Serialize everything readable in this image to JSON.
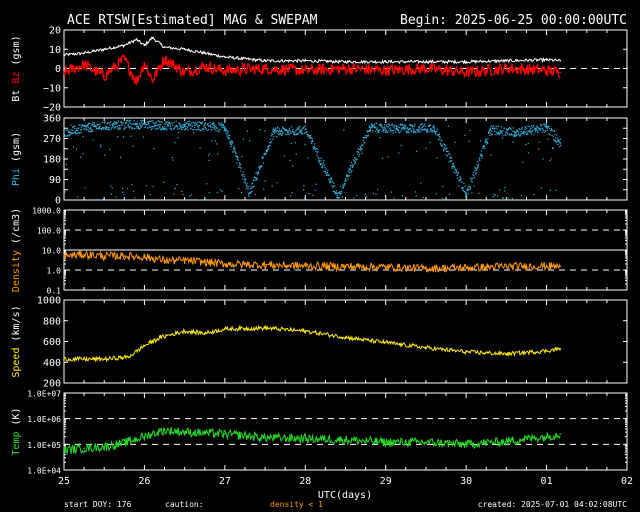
{
  "title": "ACE RTSW[Estimated] MAG & SWEPAM",
  "begin": "Begin: 2025-06-25 00:00:00UTC",
  "footer": {
    "start_doy": "start DOY: 176",
    "caution": "caution:",
    "density_note": "density < 1",
    "created": "created: 2025-07-01 04:02:08UTC"
  },
  "colors": {
    "bt": "#ffffff",
    "bz": "#ff0000",
    "phi": "#33b5e5",
    "density": "#ff9900",
    "speed": "#ffee00",
    "temp": "#22dd22",
    "axes": "#ffffff"
  },
  "xaxis": {
    "label": "UTC(days)",
    "range_days": [
      0,
      7
    ],
    "ticks": [
      "25",
      "26",
      "27",
      "28",
      "29",
      "30",
      "01",
      "02"
    ],
    "data_end_day": 6.17
  },
  "chart_data": [
    {
      "type": "line",
      "title": "",
      "ylabel_parts": [
        "Bt",
        "Bz",
        "(gsm)"
      ],
      "ylim": [
        -20,
        20
      ],
      "ytick_values": [
        -20,
        -10,
        0,
        10,
        20
      ],
      "ytick_labels": [
        "−20",
        "−10",
        "0",
        "10",
        "20"
      ],
      "dashed_lines": [
        0
      ],
      "grid": false,
      "series": [
        {
          "name": "Bt",
          "x": [
            0,
            0.25,
            0.5,
            0.75,
            0.9,
            1.0,
            1.1,
            1.25,
            1.5,
            1.75,
            2.0,
            2.5,
            3.0,
            3.5,
            4.0,
            4.5,
            5.0,
            5.5,
            6.0,
            6.17
          ],
          "values": [
            7,
            8,
            10,
            12,
            15,
            12,
            16,
            11,
            10,
            8,
            6,
            4,
            4,
            3.5,
            3.5,
            3.5,
            3.5,
            4,
            4.5,
            4
          ]
        },
        {
          "name": "Bz",
          "x": [
            0,
            0.25,
            0.5,
            0.75,
            0.9,
            1.0,
            1.1,
            1.25,
            1.5,
            1.75,
            2.0,
            2.5,
            3.0,
            3.5,
            4.0,
            4.5,
            5.0,
            5.5,
            6.0,
            6.17
          ],
          "values": [
            -2,
            2,
            -4,
            5,
            -7,
            3,
            -6,
            5,
            -2,
            1,
            -1,
            0,
            -1,
            0,
            -1,
            0,
            -2,
            0,
            -1,
            -2
          ]
        }
      ]
    },
    {
      "type": "scatter",
      "title": "",
      "ylabel_parts": [
        "Phi",
        "(gsm)"
      ],
      "ylim": [
        0,
        360
      ],
      "ytick_values": [
        0,
        45,
        90,
        135,
        180,
        225,
        270,
        315,
        360
      ],
      "ytick_labels": [
        "0",
        "",
        "90",
        "",
        "180",
        "",
        "270",
        "",
        "360"
      ],
      "dashed_lines": [],
      "grid": false,
      "series": [
        {
          "name": "Phi",
          "x": [
            0,
            0.3,
            0.6,
            0.9,
            1.2,
            1.5,
            1.8,
            2.0,
            2.3,
            2.6,
            3.0,
            3.4,
            3.8,
            4.2,
            4.6,
            5.0,
            5.3,
            5.6,
            6.0,
            6.17
          ],
          "values": [
            300,
            320,
            330,
            335,
            330,
            330,
            325,
            320,
            30,
            300,
            310,
            20,
            320,
            315,
            320,
            30,
            310,
            300,
            320,
            250
          ]
        }
      ]
    },
    {
      "type": "line",
      "title": "",
      "ylabel_parts": [
        "Density",
        "(/cm3)"
      ],
      "log": true,
      "ylim": [
        0.1,
        1000
      ],
      "ytick_values": [
        0.1,
        1,
        10,
        100,
        1000
      ],
      "ytick_labels": [
        "0.1",
        "1.0",
        "10.0",
        "100.0",
        "1000.0"
      ],
      "dashed_lines": [
        1,
        100
      ],
      "solid_lines": [
        10
      ],
      "grid": false,
      "series": [
        {
          "name": "Density",
          "x": [
            0,
            0.25,
            0.5,
            0.75,
            1.0,
            1.25,
            1.5,
            2.0,
            2.5,
            3.0,
            3.5,
            4.0,
            4.5,
            5.0,
            5.5,
            6.0,
            6.17
          ],
          "values": [
            5,
            6,
            5,
            5,
            4.5,
            3,
            3,
            2,
            1.8,
            1.6,
            1.5,
            1.4,
            1.2,
            1.3,
            1.5,
            1.6,
            1.5
          ]
        }
      ]
    },
    {
      "type": "line",
      "title": "",
      "ylabel_parts": [
        "Speed",
        "(km/s)"
      ],
      "ylim": [
        200,
        1000
      ],
      "ytick_values": [
        200,
        400,
        600,
        800,
        1000
      ],
      "ytick_labels": [
        "200",
        "400",
        "600",
        "800",
        "1000"
      ],
      "dashed_lines": [],
      "grid": false,
      "series": [
        {
          "name": "Speed",
          "x": [
            0,
            0.5,
            0.8,
            1.0,
            1.2,
            1.5,
            1.75,
            2.0,
            2.5,
            3.0,
            3.5,
            4.0,
            4.5,
            5.0,
            5.5,
            6.0,
            6.17
          ],
          "values": [
            430,
            430,
            450,
            560,
            640,
            700,
            680,
            720,
            730,
            700,
            640,
            590,
            540,
            500,
            480,
            510,
            530
          ]
        }
      ]
    },
    {
      "type": "line",
      "title": "",
      "ylabel_parts": [
        "Temp",
        "(K)"
      ],
      "log": true,
      "ylim": [
        10000,
        10000000
      ],
      "ytick_values": [
        10000,
        100000,
        1000000,
        10000000
      ],
      "ytick_labels": [
        "1.0E+04",
        "1.0E+05",
        "1.0E+06",
        "1.0E+07"
      ],
      "dashed_lines": [
        100000,
        1000000
      ],
      "grid": false,
      "series": [
        {
          "name": "Temp",
          "x": [
            0,
            0.25,
            0.5,
            0.75,
            1.0,
            1.25,
            1.5,
            2.0,
            2.5,
            3.0,
            3.5,
            4.0,
            4.5,
            5.0,
            5.5,
            6.0,
            6.17
          ],
          "values": [
            60000,
            70000,
            80000,
            110000,
            200000,
            350000,
            300000,
            250000,
            180000,
            170000,
            150000,
            120000,
            120000,
            100000,
            130000,
            200000,
            250000
          ]
        }
      ]
    }
  ]
}
